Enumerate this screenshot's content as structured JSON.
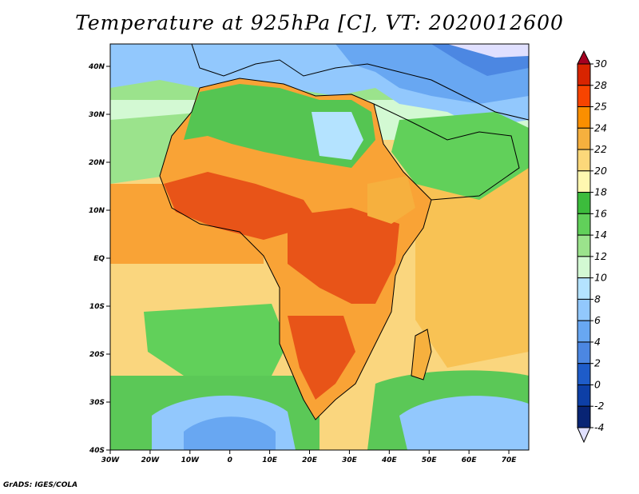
{
  "title": "Temperature at 925hPa [C], VT: 2020012600",
  "credit": "GrADS: IGES/COLA",
  "map": {
    "lon_ticks": [
      "30W",
      "20W",
      "10W",
      "0",
      "10E",
      "20E",
      "30E",
      "40E",
      "50E",
      "60E",
      "70E"
    ],
    "lat_ticks": [
      "40N",
      "30N",
      "20N",
      "10N",
      "EQ",
      "10S",
      "20S",
      "30S",
      "40S"
    ],
    "extent": {
      "lon": [
        -30,
        75
      ],
      "lat": [
        -40,
        45
      ]
    }
  },
  "colorbar": {
    "labels": [
      "30",
      "28",
      "25",
      "24",
      "22",
      "20",
      "18",
      "16",
      "14",
      "12",
      "10",
      "8",
      "6",
      "4",
      "2",
      "0",
      "-2",
      "-4"
    ],
    "colors": [
      "#a50021",
      "#d82400",
      "#f74400",
      "#fa8f00",
      "#f6b03e",
      "#fcd87a",
      "#fff7b0",
      "#3cbc3c",
      "#61d05a",
      "#9be38c",
      "#d3f9d3",
      "#b4e3ff",
      "#92c8fd",
      "#68a7f2",
      "#4c87e2",
      "#1e5cc9",
      "#0d3fa6",
      "#082474",
      "#e0e0ff"
    ]
  },
  "colors": {
    "ocean_warm": "#fad67e",
    "ocean_cool": "#f8c254",
    "land_hot": "#e85418",
    "land_warm": "#f9a336",
    "sahara_green": "#55c552",
    "med_blue": "#5e9ee8",
    "south_green": "#5bc857",
    "south_blue": "#6aa6f0"
  }
}
